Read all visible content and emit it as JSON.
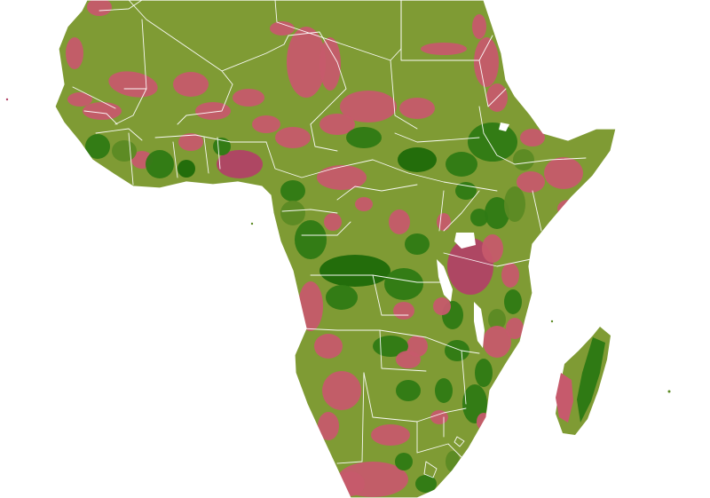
{
  "map": {
    "region": "Africa",
    "colors": {
      "background": "#ffffff",
      "base_light_green": "#7f9b34",
      "mid_green": "#5c8a24",
      "dark_green": "#2f7a14",
      "darkest_green": "#1f6a0a",
      "light_pink": "#d06070",
      "pink": "#c65a6c",
      "dark_pink": "#b14266",
      "borders": "#ffffff"
    },
    "legend_visible": false,
    "labels_visible": false
  }
}
